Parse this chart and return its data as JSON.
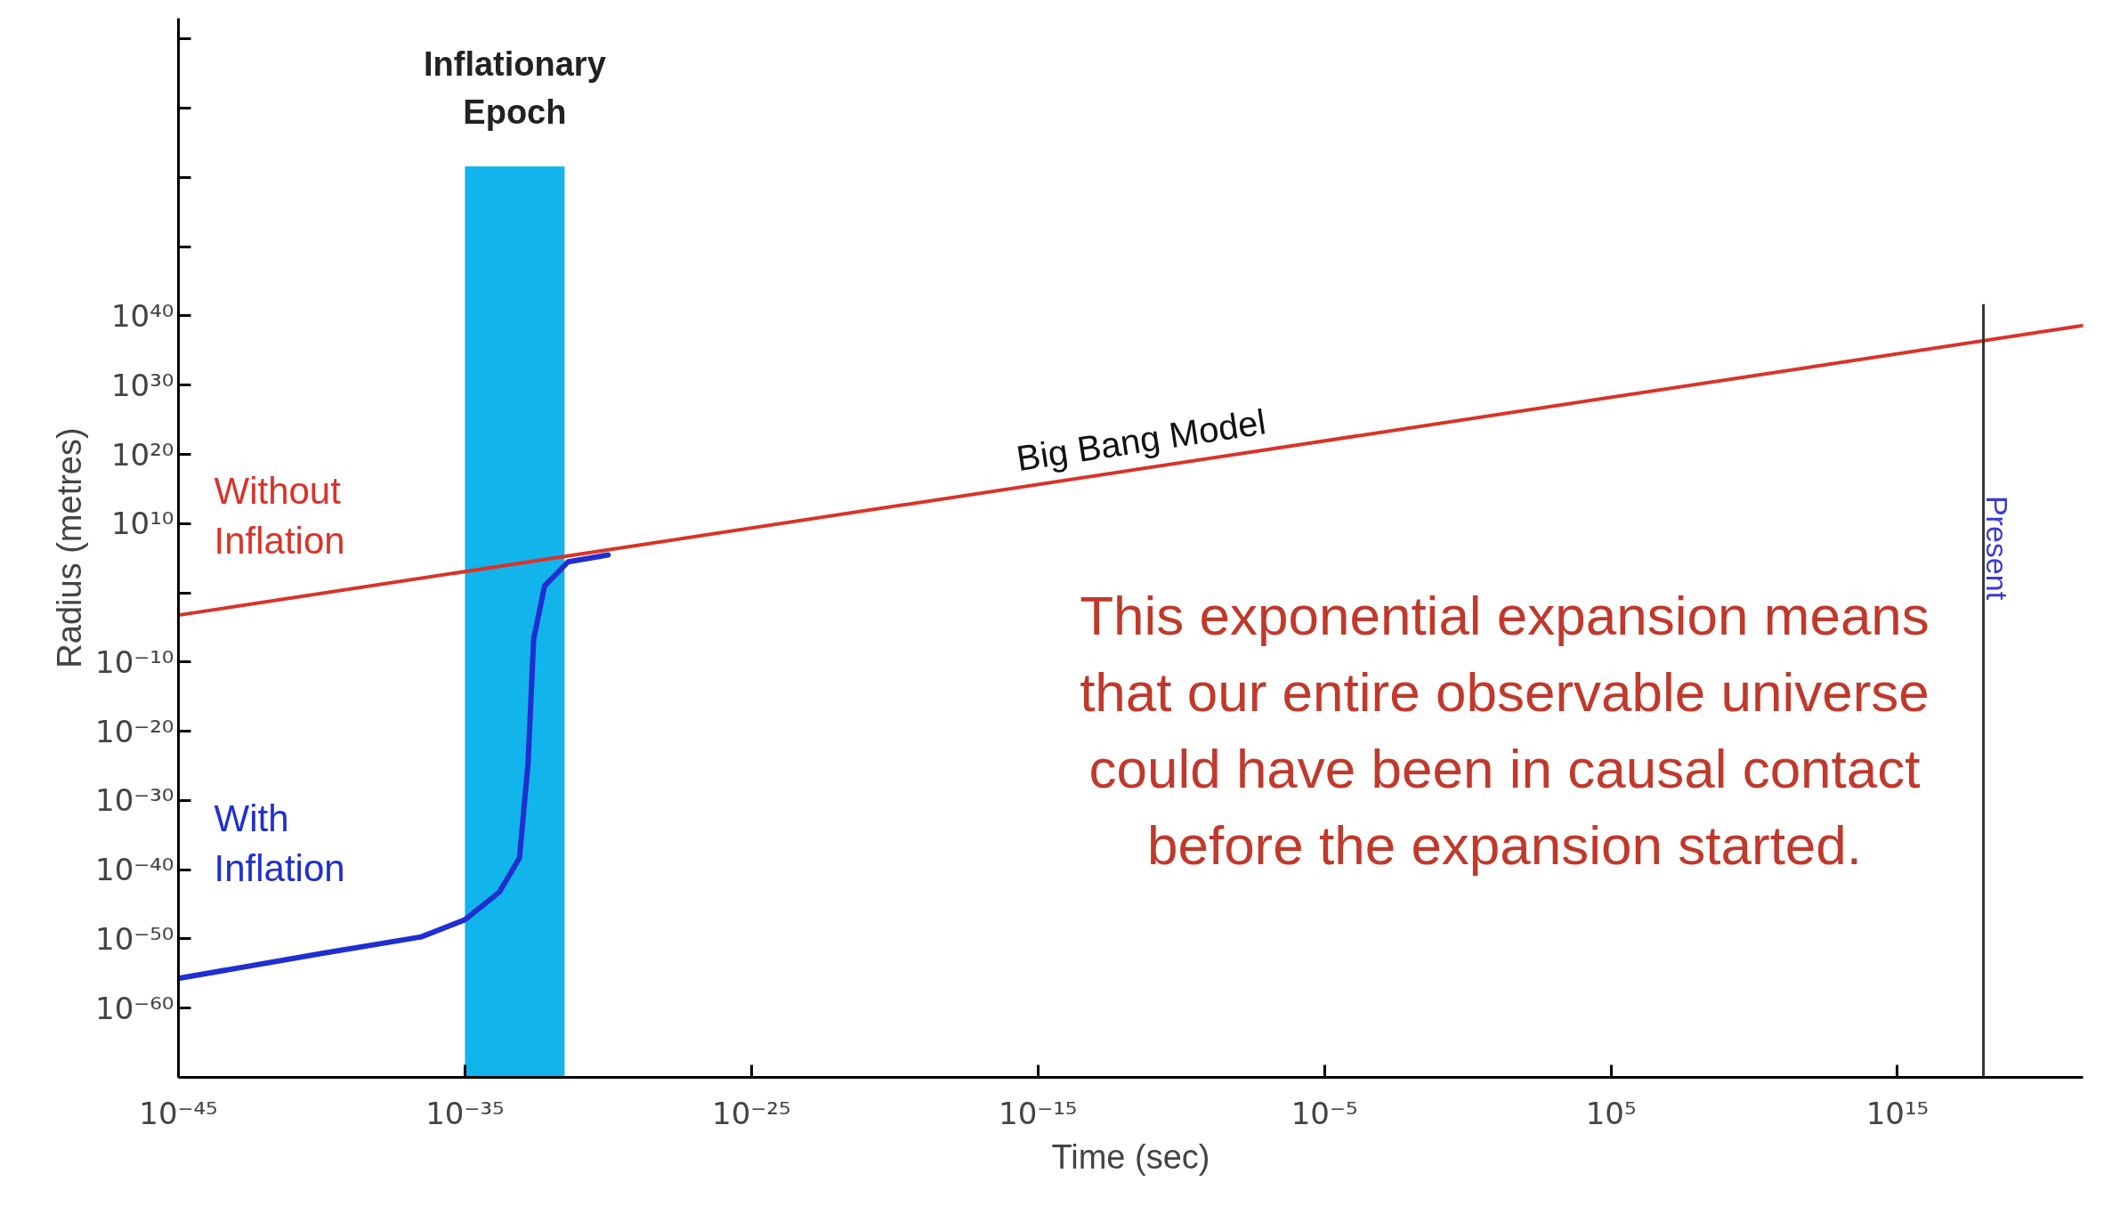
{
  "chart_data": {
    "type": "line",
    "xlabel": "Time (sec)",
    "ylabel": "Radius (metres)",
    "log": "xy",
    "grid": false,
    "marker": "none",
    "line_style": "solid",
    "xlim": [
      1e-45,
      3e+21
    ],
    "ylim": [
      1e-70,
      1e+83
    ],
    "xticks": [
      {
        "value": 1e-45,
        "label": "10⁻⁴⁵"
      },
      {
        "value": 1e-35,
        "label": "10⁻³⁵"
      },
      {
        "value": 1e-25,
        "label": "10⁻²⁵"
      },
      {
        "value": 1e-15,
        "label": "10⁻¹⁵"
      },
      {
        "value": 1e-05,
        "label": "10⁻⁵"
      },
      {
        "value": 100000.0,
        "label": "10⁵"
      },
      {
        "value": 1000000000000000.0,
        "label": "10¹⁵"
      }
    ],
    "yticks": [
      {
        "value": 1e-60,
        "label": "10⁻⁶⁰"
      },
      {
        "value": 1e-50,
        "label": "10⁻⁵⁰"
      },
      {
        "value": 1e-40,
        "label": "10⁻⁴⁰"
      },
      {
        "value": 1e-30,
        "label": "10⁻³⁰"
      },
      {
        "value": 1e-20,
        "label": "10⁻²⁰"
      },
      {
        "value": 1e-10,
        "label": "10⁻¹⁰"
      },
      {
        "value": 1,
        "label": null
      },
      {
        "value": 10000000000.0,
        "label": "10¹⁰"
      },
      {
        "value": 1e+20,
        "label": "10²⁰"
      },
      {
        "value": 1e+30,
        "label": "10³⁰"
      },
      {
        "value": 1e+40,
        "label": "10⁴⁰"
      },
      {
        "value": 1e+50,
        "label": null
      },
      {
        "value": 1e+60,
        "label": null
      },
      {
        "value": 1e+70,
        "label": null
      },
      {
        "value": 1e+80,
        "label": null
      }
    ],
    "series": [
      {
        "name": "Without Inflation",
        "color": "#d8342a",
        "x": [
          1e-45,
          3e+21
        ],
        "values": [
          0.0006,
          4e+38
        ]
      },
      {
        "name": "With Inflation",
        "color": "#1f2fd0",
        "x": [
          1e-45,
          1e-40,
          3e-37,
          1e-35,
          1.6e-34,
          8e-34,
          1.6e-33,
          2.5e-33,
          6e-33,
          4e-32,
          1e-30
        ],
        "values": [
          2e-56,
          8e-53,
          2e-50,
          6e-48,
          6e-44,
          5e-39,
          3e-25,
          2e-07,
          10.0,
          30000.0,
          300000.0
        ]
      }
    ],
    "bands": [
      {
        "axis": "x",
        "from": 1e-35,
        "to": 3e-32,
        "label": "Inflationary Epoch",
        "color": "#12b4ec"
      }
    ],
    "ref_lines": [
      {
        "axis": "x",
        "value": 1e+18,
        "label": "Present",
        "color": "#333333"
      }
    ],
    "annotations": [
      {
        "text": "Big Bang Model",
        "x": 5e-12,
        "y": 1e+18
      },
      "This exponential expansion means that our entire observable universe could have been in causal contact before the expansion started."
    ]
  }
}
